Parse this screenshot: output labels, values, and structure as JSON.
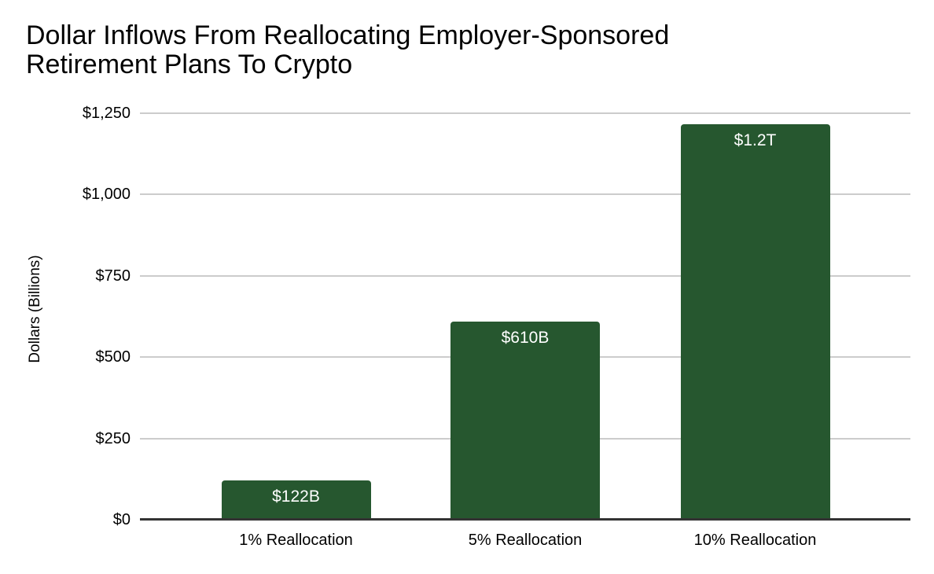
{
  "chart_data": {
    "type": "bar",
    "title": "Dollar Inflows From Reallocating Employer-Sponsored Retirement Plans To Crypto",
    "title_lines": [
      "Dollar Inflows From Reallocating Employer-Sponsored",
      "Retirement Plans To Crypto"
    ],
    "xlabel": "",
    "ylabel": "Dollars (Billions)",
    "categories": [
      "1% Reallocation",
      "5% Reallocation",
      "10% Reallocation"
    ],
    "values": [
      122,
      610,
      1217
    ],
    "bar_labels": [
      "$122B",
      "$610B",
      "$1.2T"
    ],
    "y_ticks": [
      0,
      250,
      500,
      750,
      1000,
      1250
    ],
    "y_tick_labels": [
      "$0",
      "$250",
      "$500",
      "$750",
      "$1,000",
      "$1,250"
    ],
    "ylim": [
      0,
      1250
    ],
    "grid": true,
    "legend": false
  },
  "colors": {
    "bar": "#26572F",
    "gridline": "#cccccc",
    "axis_line": "#333333",
    "bar_label_text": "#ffffff",
    "text": "#000000",
    "background": "#ffffff"
  }
}
